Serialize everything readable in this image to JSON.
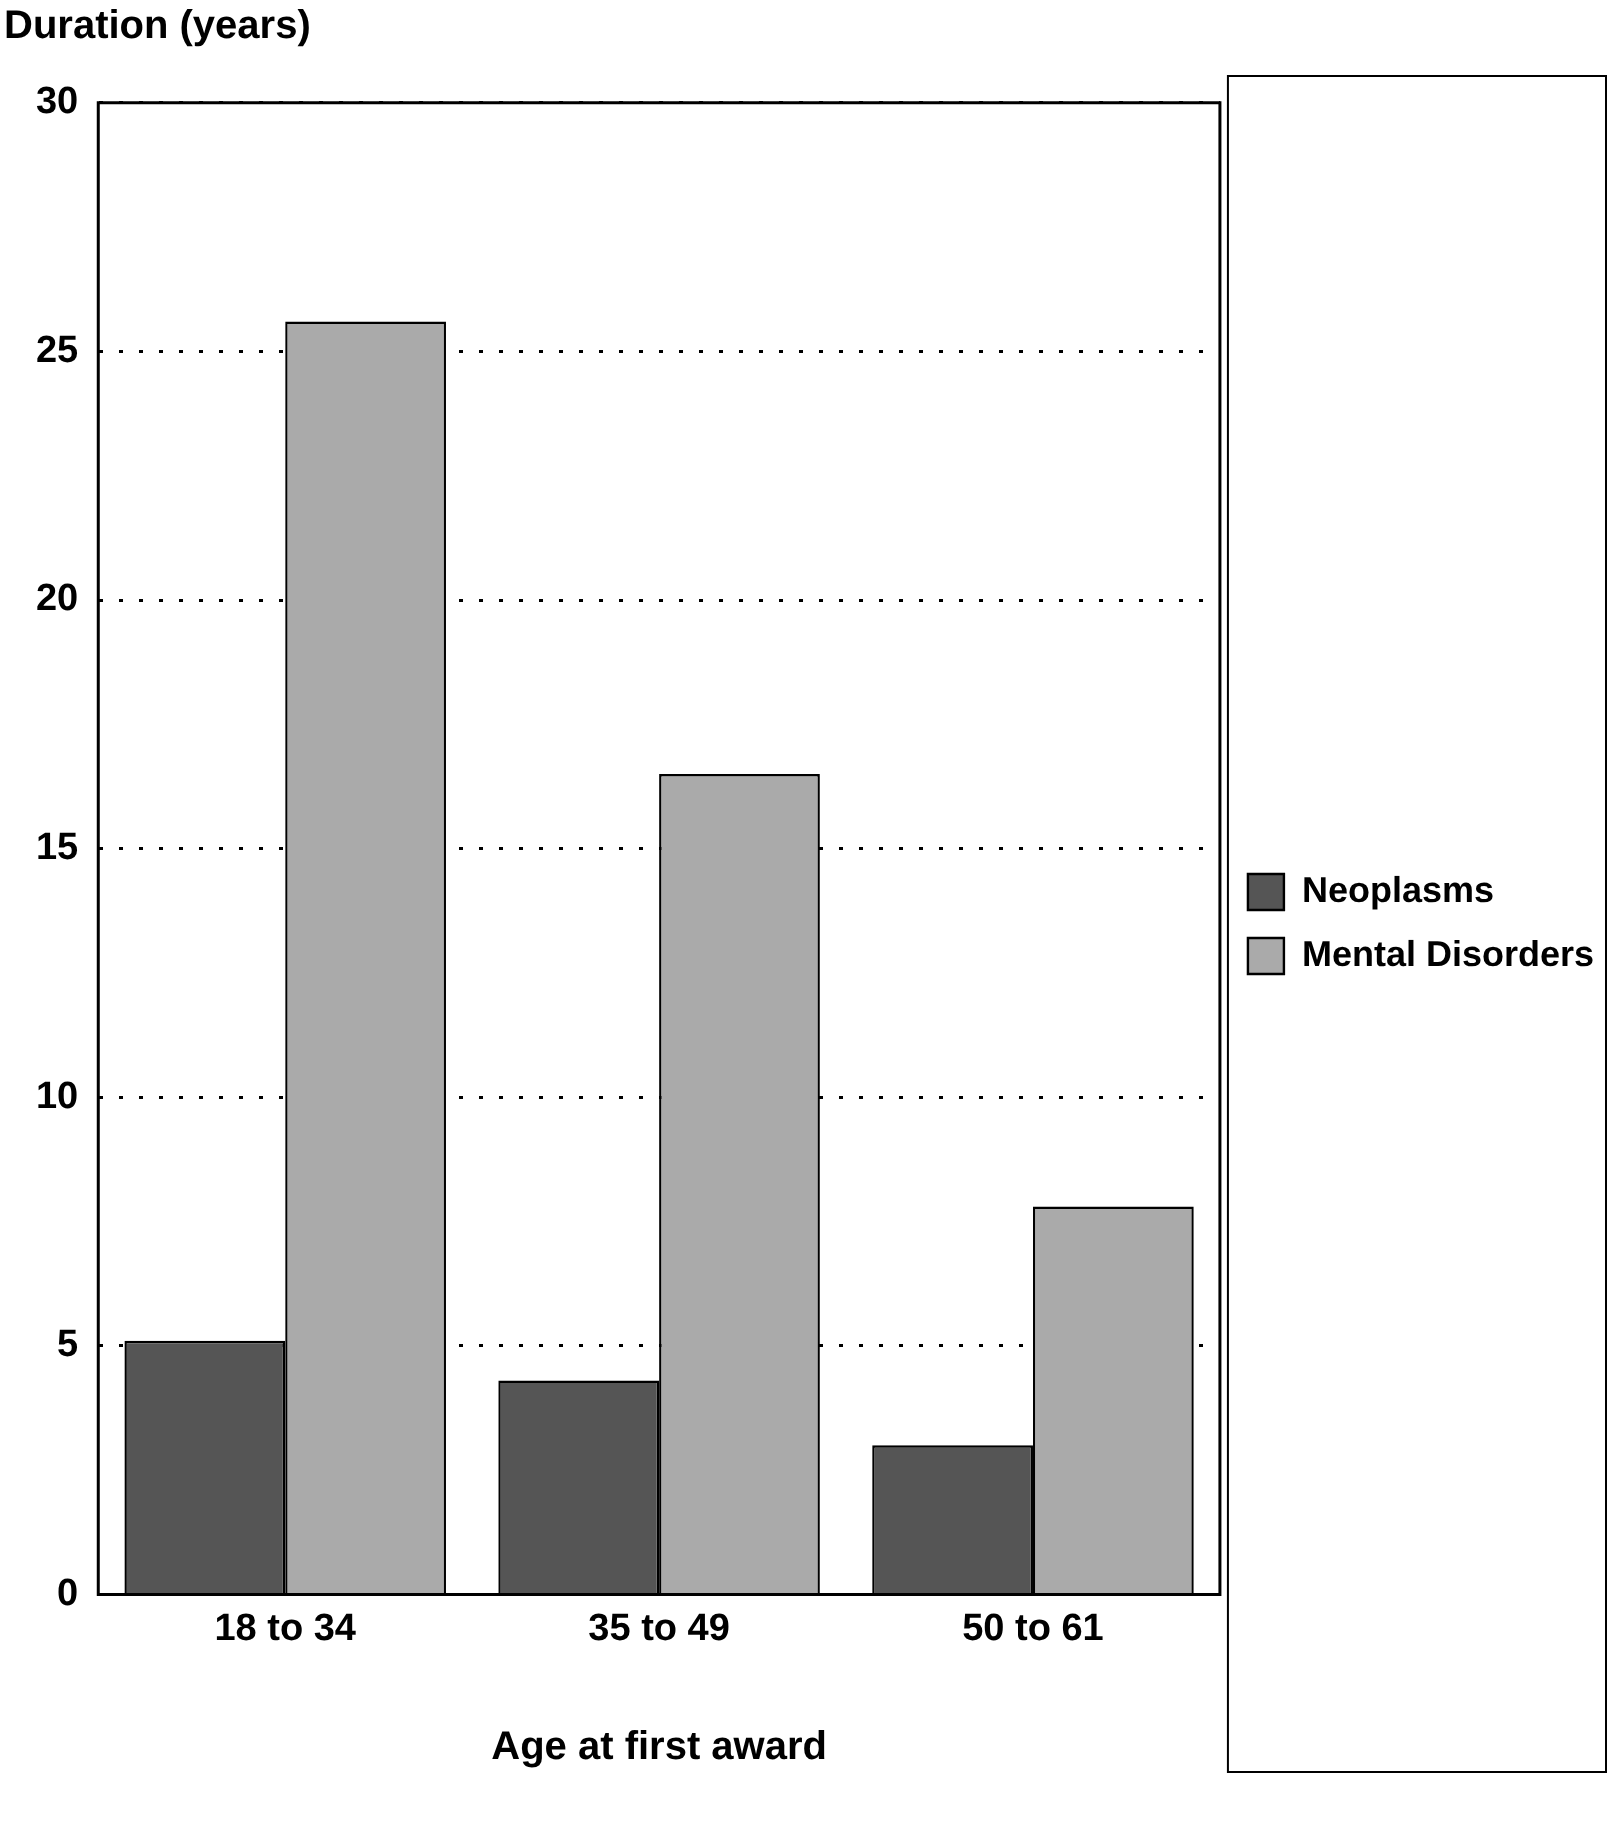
{
  "chart_data": {
    "type": "bar",
    "ylabel": "Duration (years)",
    "xlabel": "Age at first award",
    "categories": [
      "18 to 34",
      "35 to 49",
      "50 to 61"
    ],
    "series": [
      {
        "name": "Neoplasms",
        "color": "#555555",
        "values": [
          5.1,
          4.3,
          3.0
        ]
      },
      {
        "name": "Mental Disorders",
        "color": "#aaaaaa",
        "values": [
          25.6,
          16.5,
          7.8
        ]
      }
    ],
    "ylim": [
      0,
      30
    ],
    "yticks": [
      0,
      5,
      10,
      15,
      20,
      25,
      30
    ],
    "grid": "y",
    "legend": "right"
  }
}
